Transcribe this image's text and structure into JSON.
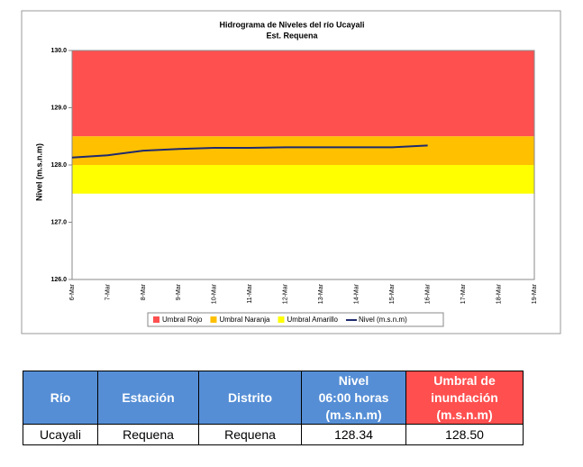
{
  "chart_data": {
    "type": "line",
    "title": "Hidrograma de Niveles del río Ucayali",
    "subtitle": "Est. Requena",
    "y_label": "Nivel (m.s.n.m)",
    "categories": [
      "6-Mar",
      "7-Mar",
      "8-Mar",
      "9-Mar",
      "10-Mar",
      "11-Mar",
      "12-Mar",
      "13-Mar",
      "14-Mar",
      "15-Mar",
      "16-Mar",
      "17-Mar",
      "18-Mar",
      "19-Mar"
    ],
    "ylim": [
      126,
      130
    ],
    "yticks": [
      {
        "value": 126,
        "label": "126.0"
      },
      {
        "value": 127,
        "label": "127.0"
      },
      {
        "value": 128,
        "label": "128.0"
      },
      {
        "value": 129,
        "label": "129.0"
      },
      {
        "value": 130,
        "label": "130.0"
      }
    ],
    "thresholds": [
      {
        "name": "Umbral Rojo",
        "color": "#ff5050",
        "from": 128.5,
        "to": 130
      },
      {
        "name": "Umbral Naranja",
        "color": "#ffc000",
        "from": 128,
        "to": 128.5
      },
      {
        "name": "Umbral Amarillo",
        "color": "#ffff00",
        "from": 127.5,
        "to": 128
      }
    ],
    "series": [
      {
        "name": "Nivel (m.s.n.m)",
        "color": "#1f2a6e",
        "values": [
          128.13,
          128.17,
          128.25,
          128.28,
          128.3,
          128.3,
          128.31,
          128.31,
          128.31,
          128.31,
          128.34,
          null,
          null,
          null
        ]
      }
    ]
  },
  "table": {
    "header": [
      "Río",
      "Estación",
      "Distrito",
      [
        "Nivel",
        "06:00 horas",
        "(m.s.n.m)"
      ],
      [
        "Umbral de",
        "inundación",
        "(m.s.n.m)"
      ]
    ],
    "rows": [
      [
        "Ucayali",
        "Requena",
        "Requena",
        "128.34",
        "128.50"
      ]
    ]
  }
}
